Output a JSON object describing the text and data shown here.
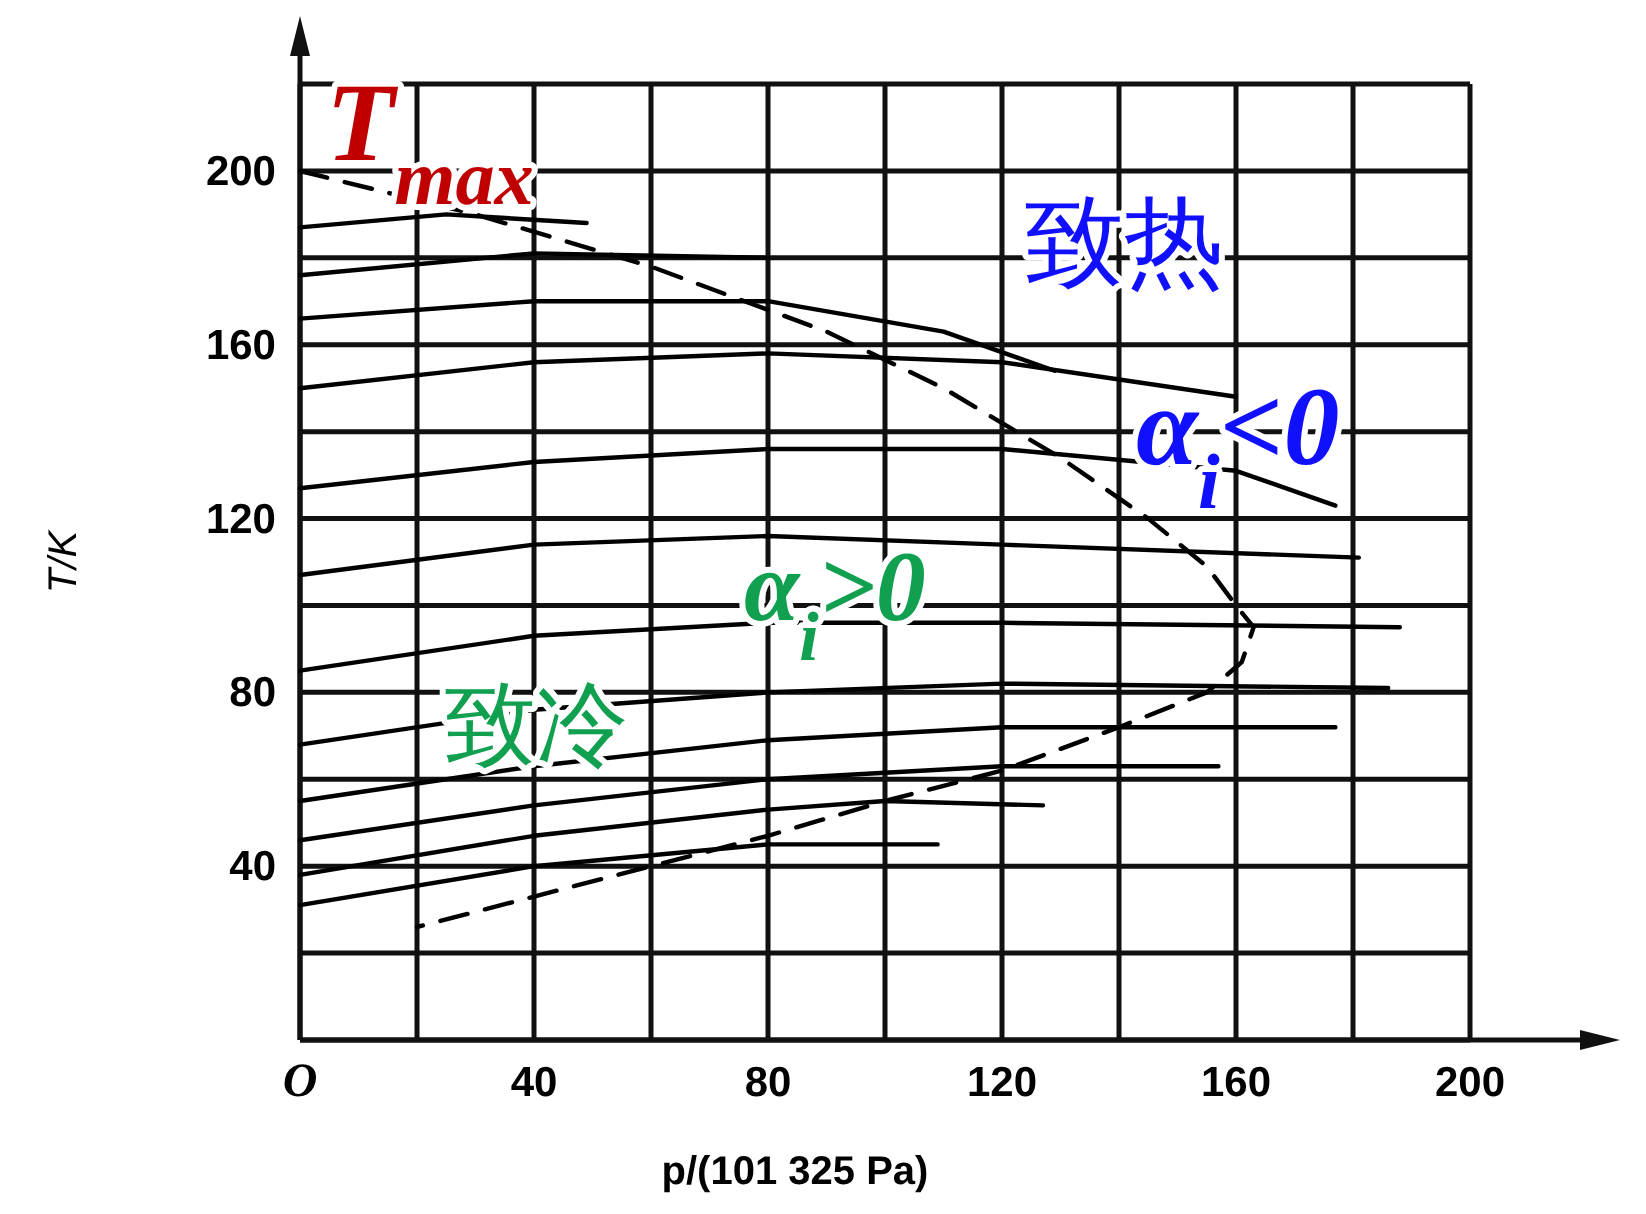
{
  "chart_data": {
    "type": "line",
    "xlabel": "p/(101 325 Pa)",
    "ylabel": "T/K",
    "xlim": [
      0,
      200
    ],
    "ylim": [
      0,
      220
    ],
    "xticks": [
      {
        "value": 0,
        "label": "O"
      },
      {
        "value": 20,
        "label": null
      },
      40,
      {
        "value": 60,
        "label": null
      },
      80,
      {
        "value": 100,
        "label": null
      },
      120,
      {
        "value": 140,
        "label": null
      },
      160,
      {
        "value": 180,
        "label": null
      },
      200
    ],
    "yticks": [
      {
        "value": 0,
        "label": null
      },
      {
        "value": 20,
        "label": null
      },
      40,
      {
        "value": 60,
        "label": null
      },
      80,
      {
        "value": 100,
        "label": null
      },
      120,
      {
        "value": 140,
        "label": null
      },
      160,
      {
        "value": 180,
        "label": null
      },
      200,
      {
        "value": 220,
        "label": null
      }
    ],
    "grid": true,
    "marker": "none",
    "annotations": [
      "T$_{max}$",
      "致热",
      "α$_{i}$<0",
      "α$_{i}$>0",
      "致冷"
    ],
    "series": [
      {
        "color": "#000000",
        "x": [
          0,
          25,
          49
        ],
        "values": [
          187,
          190,
          188
        ]
      },
      {
        "color": "#000000",
        "x": [
          0,
          40,
          80
        ],
        "values": [
          176,
          181,
          180
        ]
      },
      {
        "color": "#000000",
        "x": [
          0,
          40,
          80,
          110,
          129
        ],
        "values": [
          166,
          170,
          170,
          163,
          154
        ]
      },
      {
        "color": "#000000",
        "x": [
          0,
          40,
          80,
          120,
          160
        ],
        "values": [
          150,
          156,
          158,
          156,
          148
        ]
      },
      {
        "color": "#000000",
        "x": [
          0,
          40,
          80,
          120,
          160,
          177
        ],
        "values": [
          127,
          133,
          136,
          136,
          131,
          123
        ]
      },
      {
        "color": "#000000",
        "x": [
          0,
          40,
          80,
          120,
          181
        ],
        "values": [
          107,
          114,
          116,
          114,
          111
        ]
      },
      {
        "color": "#000000",
        "x": [
          0,
          40,
          80,
          120,
          188
        ],
        "values": [
          85,
          93,
          96,
          96,
          95
        ]
      },
      {
        "color": "#000000",
        "x": [
          0,
          40,
          80,
          120,
          186
        ],
        "values": [
          68,
          76,
          80,
          82,
          81
        ]
      },
      {
        "color": "#000000",
        "x": [
          0,
          40,
          80,
          120,
          177
        ],
        "values": [
          55,
          63,
          69,
          72,
          72
        ]
      },
      {
        "color": "#000000",
        "x": [
          0,
          40,
          80,
          120,
          157
        ],
        "values": [
          46,
          54,
          60,
          63,
          63
        ]
      },
      {
        "color": "#000000",
        "x": [
          0,
          40,
          80,
          100,
          127
        ],
        "values": [
          38,
          47,
          53,
          55,
          54
        ]
      },
      {
        "color": "#000000",
        "x": [
          0,
          40,
          80,
          109
        ],
        "values": [
          31,
          40,
          45,
          45
        ]
      },
      {
        "color": "#000000",
        "line_style": "dashed",
        "x": [
          0,
          30,
          60,
          90,
          110,
          130,
          145,
          155,
          160,
          163,
          161,
          155,
          140,
          120,
          100,
          80,
          60,
          40,
          20
        ],
        "values": [
          200,
          190,
          178,
          163,
          150,
          134,
          120,
          109,
          100,
          95,
          87,
          80,
          72,
          62,
          55,
          47,
          40,
          33,
          26
        ]
      }
    ]
  }
}
